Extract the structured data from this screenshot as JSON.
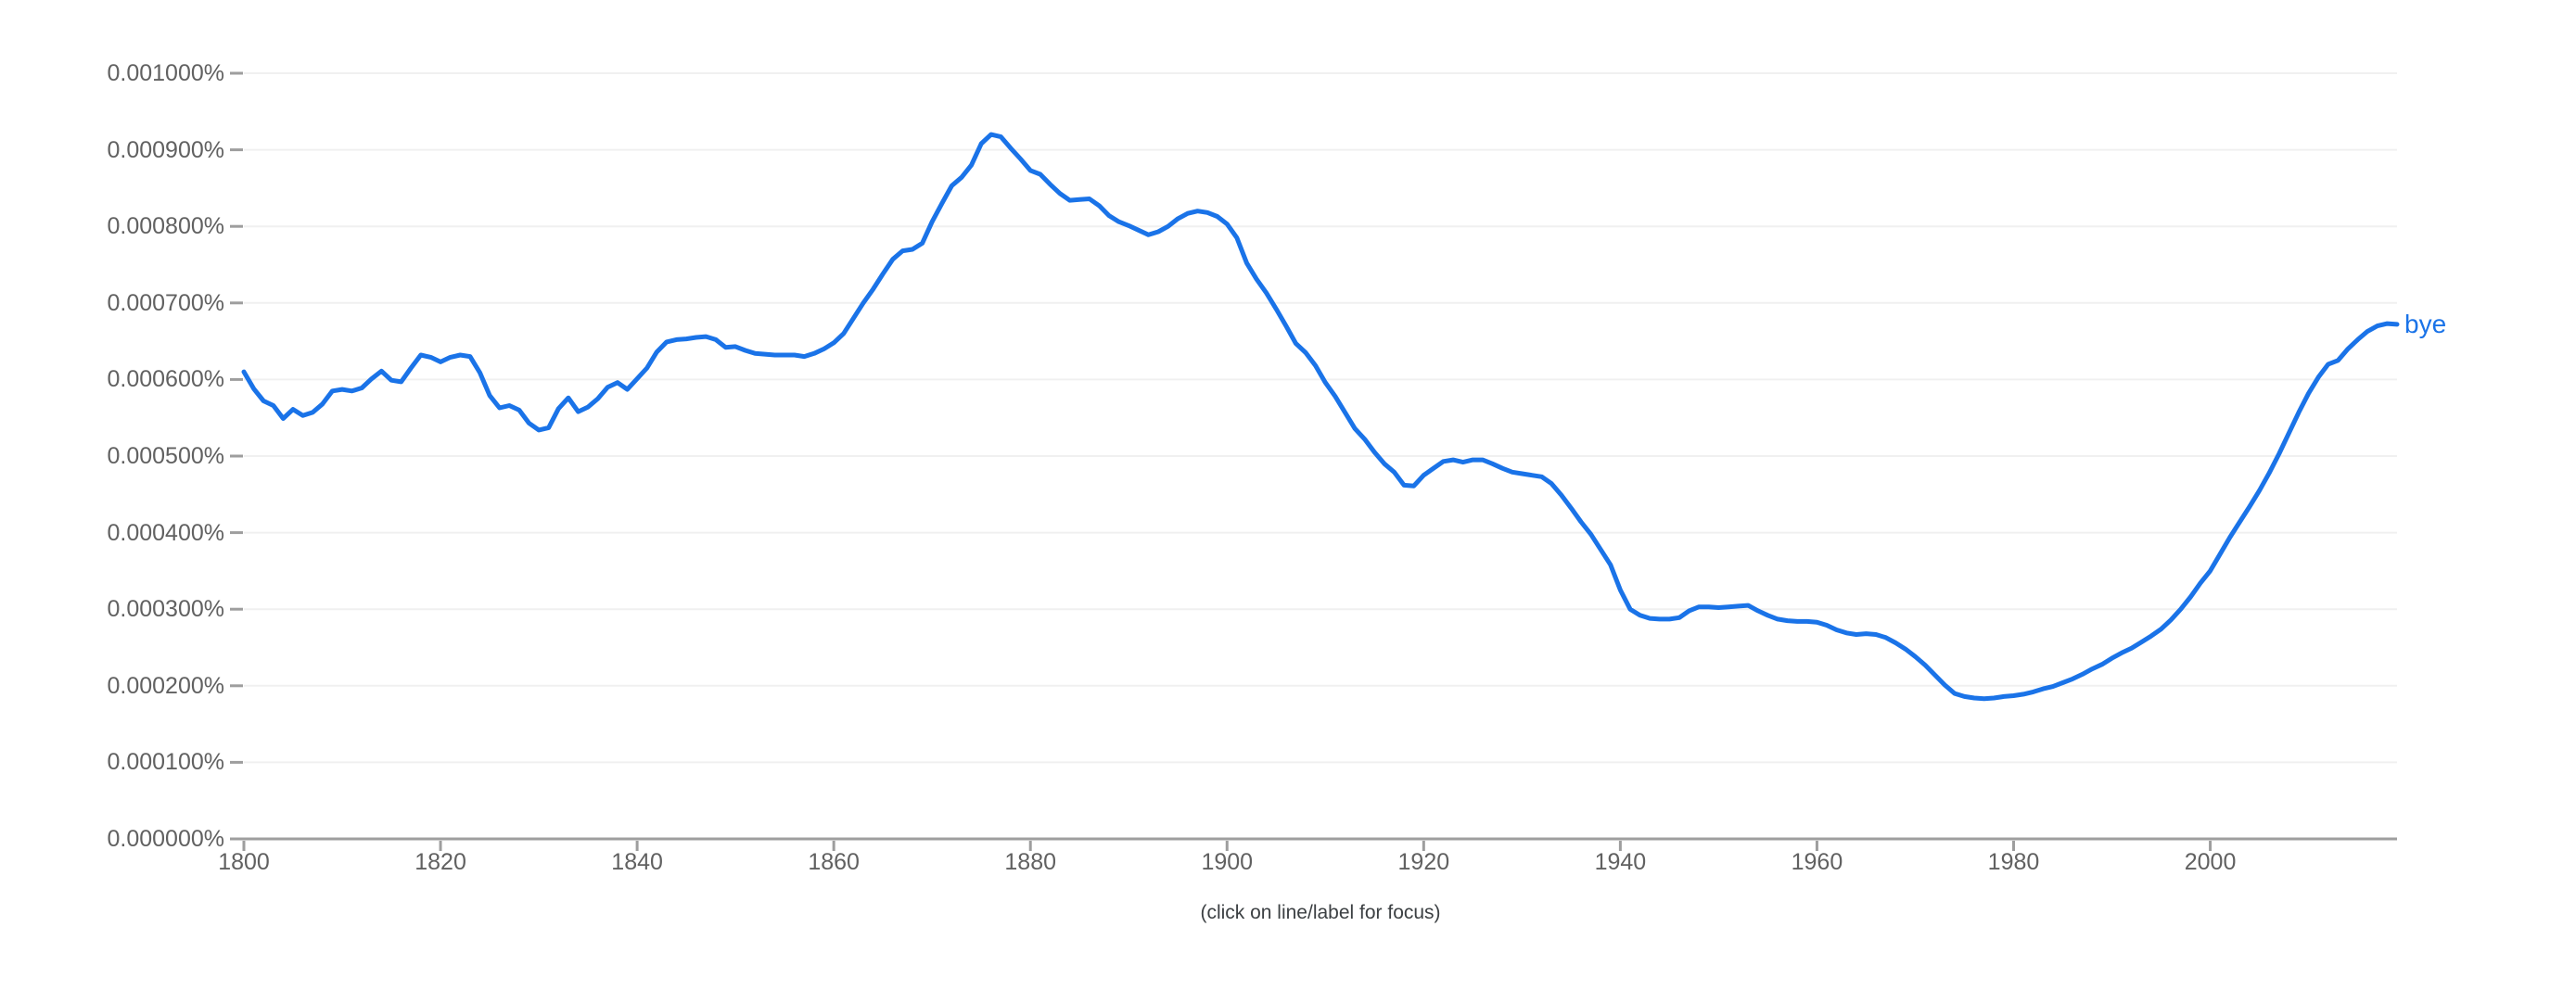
{
  "chart_data": {
    "type": "line",
    "title": "",
    "xlabel": "",
    "ylabel": "",
    "grid": "horizontal",
    "legend_position": "end-of-line",
    "x_start_year": 1800,
    "x_end_year": 2019,
    "ylim_unit": "1e-6 percent (value 610 = 0.000610%)",
    "ylim": [
      0,
      1000
    ],
    "y_tick_values": [
      1000,
      900,
      800,
      700,
      600,
      500,
      400,
      300,
      200,
      100,
      0
    ],
    "y_tick_labels": [
      "0.001000%",
      "0.000900%",
      "0.000800%",
      "0.000700%",
      "0.000600%",
      "0.000500%",
      "0.000400%",
      "0.000300%",
      "0.000200%",
      "0.000100%",
      "0.000000%"
    ],
    "x_tick_years": [
      1800,
      1820,
      1840,
      1860,
      1880,
      1900,
      1920,
      1940,
      1960,
      1980,
      2000
    ],
    "x_tick_labels": [
      "1800",
      "1820",
      "1840",
      "1860",
      "1880",
      "1900",
      "1920",
      "1940",
      "1960",
      "1980",
      "2000"
    ],
    "footnote": "(click on line/label for focus)",
    "series": [
      {
        "name": "bye",
        "color": "#1a73e8",
        "start_year": 1800,
        "values_unit": "1e-6 percent",
        "values": [
          610,
          588,
          572,
          566,
          549,
          561,
          553,
          557,
          568,
          585,
          587,
          585,
          589,
          601,
          611,
          599,
          597,
          615,
          632,
          629,
          623,
          629,
          632,
          630,
          609,
          579,
          563,
          566,
          560,
          543,
          534,
          537,
          562,
          576,
          558,
          564,
          575,
          590,
          596,
          587,
          601,
          615,
          636,
          649,
          652,
          653,
          655,
          656,
          652,
          642,
          643,
          638,
          634,
          633,
          632,
          632,
          632,
          630,
          634,
          640,
          648,
          660,
          680,
          700,
          718,
          738,
          757,
          768,
          770,
          778,
          806,
          830,
          853,
          864,
          880,
          908,
          920,
          917,
          902,
          888,
          873,
          868,
          855,
          843,
          834,
          835,
          836,
          827,
          814,
          806,
          801,
          795,
          789,
          793,
          800,
          810,
          817,
          820,
          818,
          813,
          803,
          785,
          752,
          731,
          713,
          692,
          670,
          647,
          635,
          618,
          596,
          578,
          557,
          536,
          522,
          505,
          490,
          479,
          462,
          461,
          475,
          484,
          493,
          495,
          492,
          495,
          495,
          490,
          484,
          479,
          477,
          475,
          473,
          464,
          449,
          432,
          414,
          398,
          378,
          358,
          325,
          300,
          292,
          288,
          287,
          287,
          289,
          298,
          303,
          303,
          302,
          303,
          304,
          305,
          298,
          292,
          287,
          285,
          284,
          284,
          283,
          279,
          273,
          269,
          267,
          268,
          267,
          263,
          256,
          248,
          238,
          227,
          214,
          201,
          190,
          186,
          184,
          183,
          184,
          186,
          187,
          189,
          192,
          196,
          199,
          204,
          209,
          215,
          222,
          228,
          236,
          243,
          249,
          257,
          265,
          274,
          286,
          300,
          316,
          334,
          350,
          372,
          394,
          414,
          434,
          455,
          478,
          503,
          530,
          557,
          582,
          603,
          620,
          625,
          640,
          652,
          663,
          670,
          673,
          672
        ]
      }
    ]
  },
  "colors": {
    "background": "#ffffff",
    "line_blue": "#1a73e8",
    "gridline": "#f0f0f0",
    "axis_gray": "#9e9e9e",
    "tick_text": "#616161",
    "footnote_text": "#3c4043"
  }
}
